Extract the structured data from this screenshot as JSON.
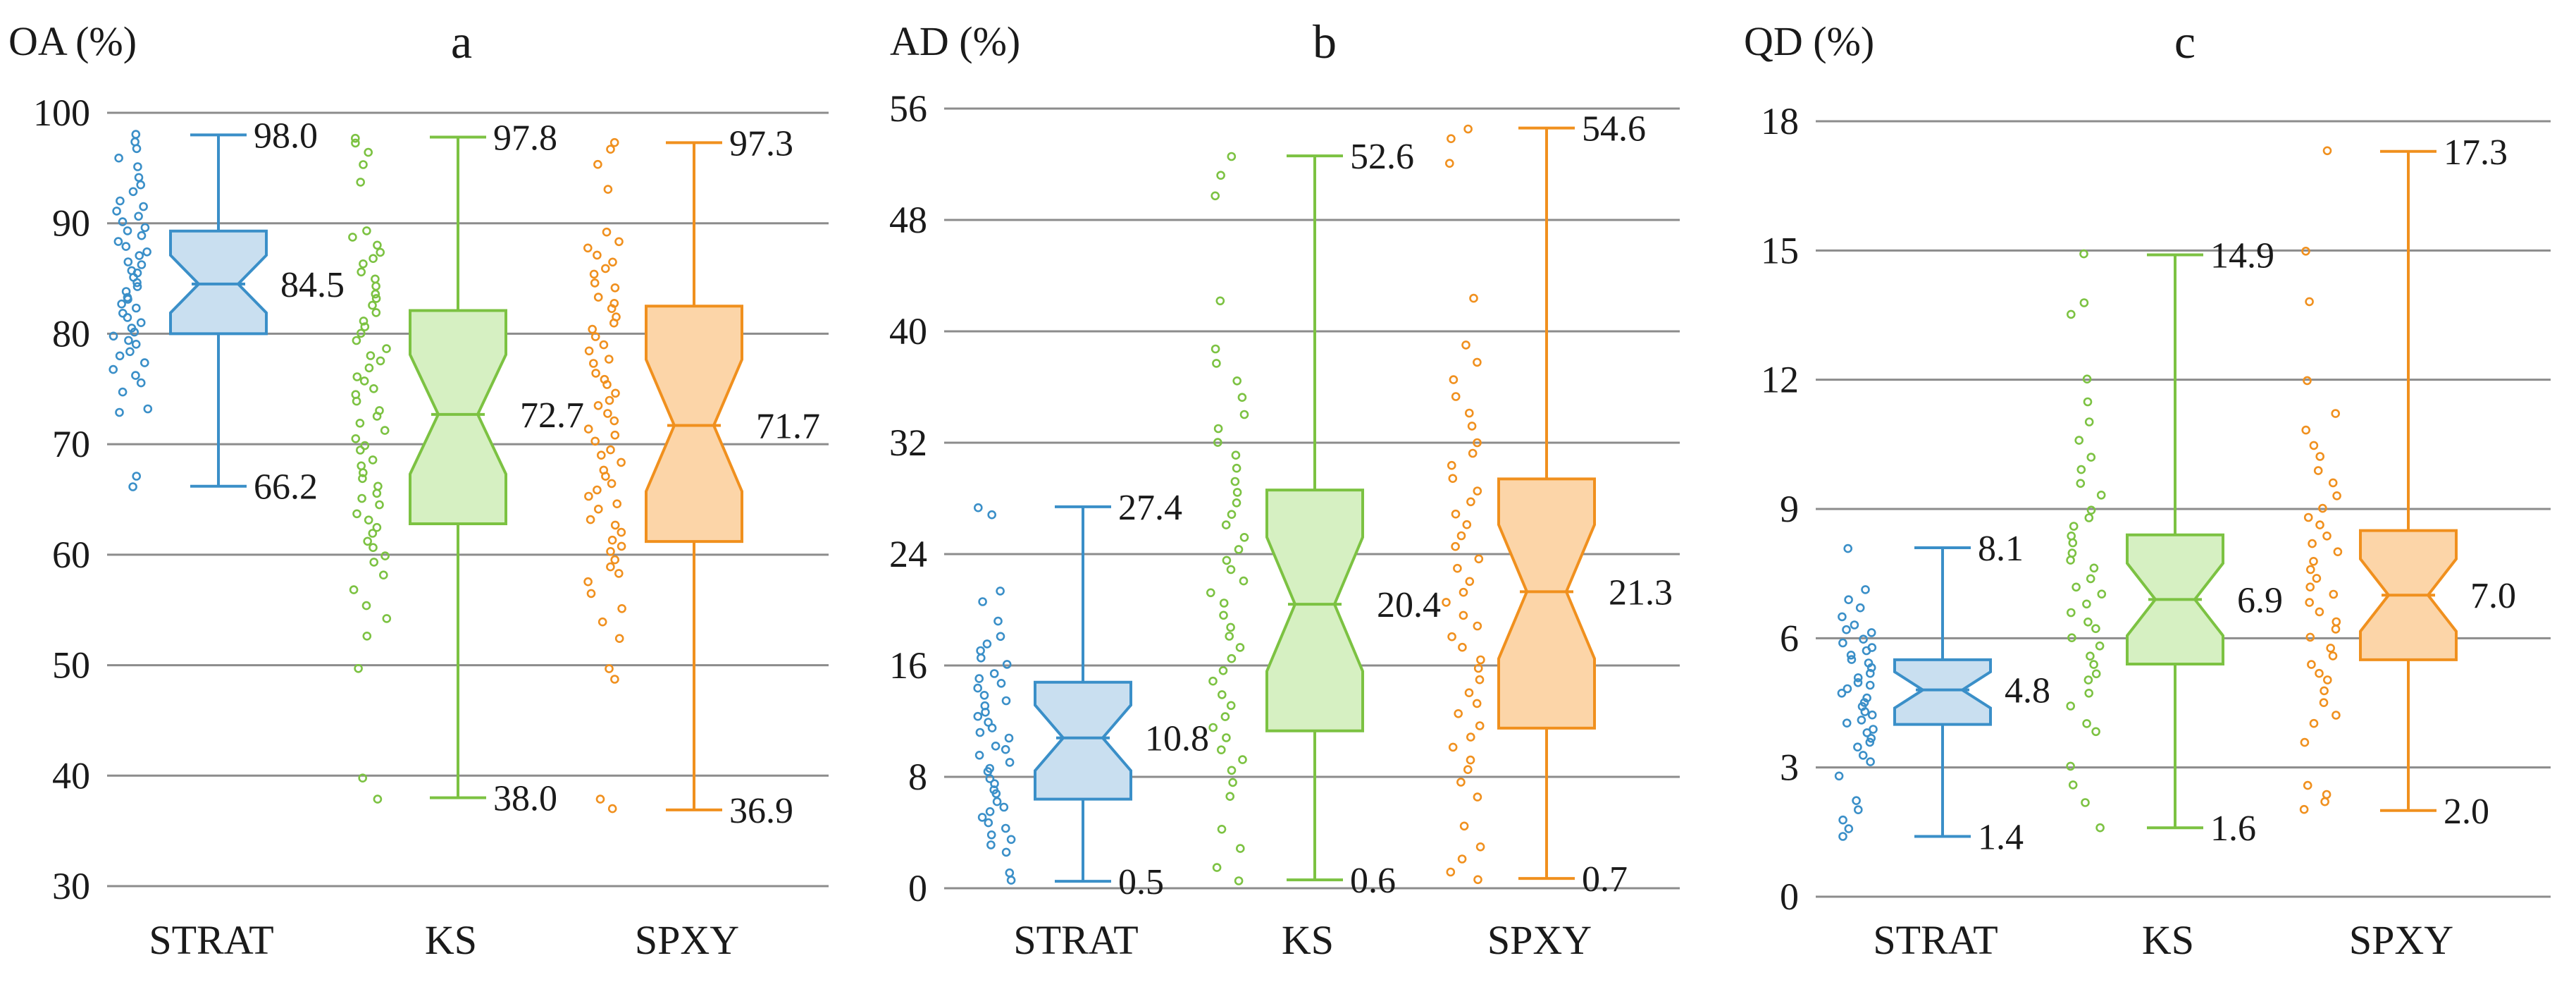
{
  "colors": {
    "STRAT": "#3a8fc8",
    "KS": "#7cc242",
    "SPXY": "#f0901e"
  },
  "fills": {
    "STRAT": "#c9dff0",
    "KS": "#d6f0c2",
    "SPXY": "#fcd5a8"
  },
  "chart_data": [
    {
      "type": "boxplot",
      "panel": "a",
      "ylabel": "OA (%)",
      "ylim": [
        30,
        100
      ],
      "yticks": [
        30,
        40,
        50,
        60,
        70,
        80,
        90,
        100
      ],
      "grid": true,
      "categories": [
        "STRAT",
        "KS",
        "SPXY"
      ],
      "boxes": [
        {
          "name": "STRAT",
          "min": 66.2,
          "q1": 80.0,
          "median": 84.5,
          "q3": 89.3,
          "max": 98.0,
          "median_label": "84.5",
          "min_label": "66.2",
          "max_label": "98.0",
          "points": [
            98.0,
            97.5,
            96.8,
            96,
            95.2,
            94.1,
            93.4,
            92.8,
            92.1,
            91.6,
            91.1,
            90.6,
            90.1,
            89.7,
            89.3,
            88.8,
            88.3,
            87.9,
            87.4,
            87.0,
            86.6,
            86.2,
            85.8,
            85.4,
            85.0,
            84.6,
            84.2,
            83.8,
            83.4,
            83.0,
            82.6,
            82.2,
            81.8,
            81.4,
            81.0,
            80.6,
            80.2,
            79.8,
            79.4,
            79.0,
            78.5,
            78.0,
            77.4,
            76.8,
            76.2,
            75.6,
            74.8,
            73.2,
            72.9,
            67.2,
            66.2
          ]
        },
        {
          "name": "KS",
          "min": 38.0,
          "q1": 62.8,
          "median": 72.7,
          "q3": 82.1,
          "max": 97.8,
          "median_label": "72.7",
          "min_label": "38.0",
          "max_label": "97.8",
          "points": [
            97.8,
            97.2,
            96.5,
            95.4,
            93.8,
            89.3,
            88.7,
            88.1,
            87.5,
            86.9,
            86.2,
            85.6,
            85.0,
            84.3,
            83.7,
            83.1,
            82.5,
            81.9,
            81.2,
            80.6,
            80.0,
            79.4,
            78.7,
            78.1,
            77.5,
            76.9,
            76.2,
            75.6,
            75.0,
            74.4,
            73.8,
            73.1,
            72.5,
            71.9,
            71.2,
            70.6,
            70.0,
            69.4,
            68.7,
            68.1,
            67.5,
            66.9,
            66.2,
            65.6,
            65.0,
            64.4,
            63.7,
            63.1,
            62.5,
            61.9,
            61.2,
            60.6,
            60.0,
            59.3,
            58.1,
            56.8,
            55.5,
            54.1,
            52.6,
            49.8,
            39.9,
            38.0
          ]
        },
        {
          "name": "SPXY",
          "min": 36.9,
          "q1": 61.2,
          "median": 71.7,
          "q3": 82.5,
          "max": 97.3,
          "median_label": "71.7",
          "min_label": "36.9",
          "max_label": "97.3",
          "points": [
            97.3,
            96.8,
            95.4,
            93.1,
            89.1,
            88.4,
            87.8,
            87.2,
            86.6,
            86.0,
            85.3,
            84.7,
            84.1,
            83.4,
            82.8,
            82.2,
            81.6,
            80.9,
            80.3,
            79.7,
            79.0,
            78.4,
            77.8,
            77.2,
            76.5,
            75.9,
            75.3,
            74.6,
            74.0,
            73.4,
            72.8,
            72.1,
            71.5,
            70.9,
            70.2,
            69.6,
            69.0,
            68.4,
            67.7,
            67.1,
            66.5,
            65.8,
            65.2,
            64.6,
            64.0,
            63.3,
            62.7,
            62.1,
            61.4,
            60.8,
            60.2,
            59.5,
            58.9,
            58.3,
            57.6,
            56.4,
            55.1,
            53.8,
            52.4,
            49.8,
            48.8,
            37.8,
            36.9
          ]
        }
      ]
    },
    {
      "type": "boxplot",
      "panel": "b",
      "ylabel": "AD (%)",
      "ylim": [
        0,
        56
      ],
      "yticks": [
        0,
        8,
        16,
        24,
        32,
        40,
        48,
        56
      ],
      "grid": true,
      "categories": [
        "STRAT",
        "KS",
        "SPXY"
      ],
      "boxes": [
        {
          "name": "STRAT",
          "min": 0.5,
          "q1": 6.4,
          "median": 10.8,
          "q3": 14.8,
          "max": 27.4,
          "median_label": "10.8",
          "min_label": "0.5",
          "max_label": "27.4",
          "points": [
            27.4,
            26.9,
            21.3,
            20.5,
            19.2,
            18.0,
            17.5,
            17.0,
            16.5,
            16.0,
            15.5,
            15.1,
            14.7,
            14.3,
            13.9,
            13.5,
            13.1,
            12.7,
            12.3,
            11.9,
            11.5,
            11.1,
            10.7,
            10.3,
            9.9,
            9.5,
            9.1,
            8.7,
            8.3,
            7.9,
            7.5,
            7.1,
            6.7,
            6.3,
            5.9,
            5.5,
            5.1,
            4.7,
            4.3,
            3.9,
            3.5,
            3.1,
            2.6,
            1.2,
            0.5
          ]
        },
        {
          "name": "KS",
          "min": 0.6,
          "q1": 11.3,
          "median": 20.4,
          "q3": 28.6,
          "max": 52.6,
          "median_label": "20.4",
          "min_label": "0.6",
          "max_label": "52.6",
          "points": [
            52.6,
            51.2,
            49.8,
            42.1,
            38.8,
            37.6,
            36.4,
            35.2,
            34.0,
            33.0,
            32.0,
            31.1,
            30.2,
            29.3,
            28.4,
            27.6,
            26.8,
            26.0,
            25.2,
            24.4,
            23.6,
            22.8,
            22.0,
            21.2,
            20.4,
            19.6,
            18.8,
            18.0,
            17.2,
            16.4,
            15.6,
            14.8,
            14.0,
            13.2,
            12.4,
            11.6,
            10.8,
            10.0,
            9.2,
            8.4,
            7.6,
            6.5,
            4.2,
            2.8,
            1.5,
            0.6
          ]
        },
        {
          "name": "SPXY",
          "min": 0.7,
          "q1": 11.5,
          "median": 21.3,
          "q3": 29.4,
          "max": 54.6,
          "median_label": "21.3",
          "min_label": "0.7",
          "max_label": "54.6",
          "points": [
            54.6,
            53.9,
            52.1,
            42.3,
            39.0,
            37.8,
            36.6,
            35.4,
            34.2,
            33.1,
            32.1,
            31.2,
            30.3,
            29.4,
            28.5,
            27.7,
            26.9,
            26.1,
            25.3,
            24.5,
            23.7,
            22.9,
            22.1,
            21.3,
            20.5,
            19.7,
            18.9,
            18.1,
            17.3,
            16.5,
            15.7,
            14.9,
            14.1,
            13.3,
            12.5,
            11.7,
            10.9,
            10.1,
            9.3,
            8.5,
            7.7,
            6.6,
            4.4,
            3.0,
            2.1,
            1.2,
            0.7
          ]
        }
      ]
    },
    {
      "type": "boxplot",
      "panel": "c",
      "ylabel": "QD (%)",
      "ylim": [
        0,
        18
      ],
      "yticks": [
        0,
        3,
        6,
        9,
        12,
        15,
        18
      ],
      "grid": true,
      "categories": [
        "STRAT",
        "KS",
        "SPXY"
      ],
      "boxes": [
        {
          "name": "STRAT",
          "min": 1.4,
          "q1": 4.0,
          "median": 4.8,
          "q3": 5.5,
          "max": 8.1,
          "median_label": "4.8",
          "min_label": "1.4",
          "max_label": "8.1",
          "points": [
            8.1,
            7.1,
            6.9,
            6.7,
            6.5,
            6.3,
            6.2,
            6.1,
            6.0,
            5.9,
            5.8,
            5.7,
            5.6,
            5.5,
            5.4,
            5.3,
            5.2,
            5.1,
            5.0,
            4.9,
            4.8,
            4.7,
            4.6,
            4.5,
            4.4,
            4.3,
            4.2,
            4.1,
            4.0,
            3.9,
            3.8,
            3.7,
            3.6,
            3.5,
            3.3,
            3.1,
            2.8,
            2.2,
            2.0,
            1.8,
            1.6,
            1.4
          ]
        },
        {
          "name": "KS",
          "min": 1.6,
          "q1": 5.4,
          "median": 6.9,
          "q3": 8.4,
          "max": 14.9,
          "median_label": "6.9",
          "min_label": "1.6",
          "max_label": "14.9",
          "points": [
            14.9,
            13.8,
            13.5,
            12.0,
            11.5,
            11.0,
            10.6,
            10.2,
            9.9,
            9.6,
            9.3,
            9.0,
            8.8,
            8.6,
            8.4,
            8.2,
            8.0,
            7.8,
            7.6,
            7.4,
            7.2,
            7.0,
            6.8,
            6.6,
            6.4,
            6.2,
            6.0,
            5.8,
            5.6,
            5.4,
            5.2,
            5.0,
            4.7,
            4.4,
            4.0,
            3.8,
            3.0,
            2.6,
            2.2,
            1.6
          ]
        },
        {
          "name": "SPXY",
          "min": 2.0,
          "q1": 5.5,
          "median": 7.0,
          "q3": 8.5,
          "max": 17.3,
          "median_label": "7.0",
          "min_label": "2.0",
          "max_label": "17.3",
          "points": [
            17.3,
            15.0,
            13.8,
            12.0,
            11.2,
            10.8,
            10.5,
            10.2,
            9.9,
            9.6,
            9.3,
            9.0,
            8.8,
            8.6,
            8.4,
            8.2,
            8.0,
            7.8,
            7.6,
            7.4,
            7.2,
            7.0,
            6.8,
            6.6,
            6.4,
            6.2,
            6.0,
            5.8,
            5.6,
            5.4,
            5.2,
            5.0,
            4.8,
            4.5,
            4.2,
            4.0,
            3.6,
            2.6,
            2.4,
            2.2,
            2.0
          ]
        }
      ]
    }
  ]
}
